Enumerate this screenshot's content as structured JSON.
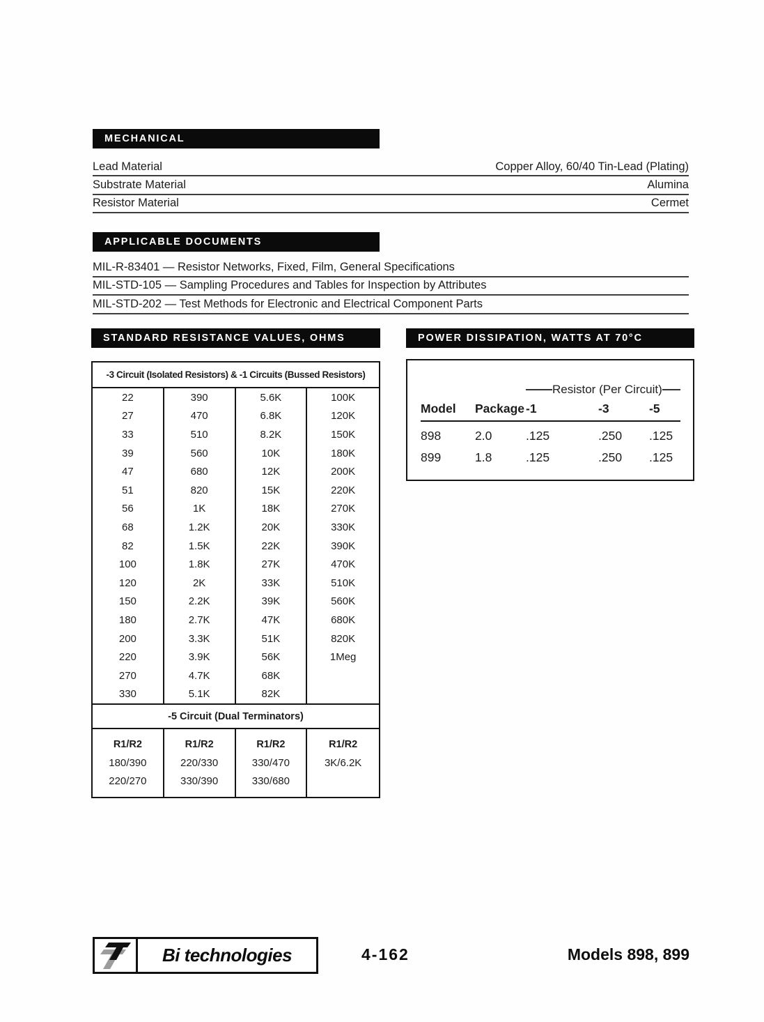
{
  "mechanical": {
    "title": "MECHANICAL",
    "rows": [
      {
        "label": "Lead Material",
        "value": "Copper Alloy, 60/40 Tin-Lead (Plating)"
      },
      {
        "label": "Substrate Material",
        "value": "Alumina"
      },
      {
        "label": "Resistor Material",
        "value": "Cermet"
      }
    ]
  },
  "applicable_documents": {
    "title": "APPLICABLE DOCUMENTS",
    "items": [
      "MIL-R-83401 — Resistor Networks, Fixed, Film, General Specifications",
      "MIL-STD-105 — Sampling Procedures and Tables for Inspection by Attributes",
      "MIL-STD-202 — Test Methods for Electronic and Electrical Component Parts"
    ]
  },
  "standard_resistance": {
    "title": "STANDARD RESISTANCE VALUES, OHMS",
    "header": "-3 Circuit (Isolated Resistors) & -1 Circuits (Bussed Resistors)",
    "rows": [
      [
        "22",
        "390",
        "5.6K",
        "100K"
      ],
      [
        "27",
        "470",
        "6.8K",
        "120K"
      ],
      [
        "33",
        "510",
        "8.2K",
        "150K"
      ],
      [
        "39",
        "560",
        "10K",
        "180K"
      ],
      [
        "47",
        "680",
        "12K",
        "200K"
      ],
      [
        "51",
        "820",
        "15K",
        "220K"
      ],
      [
        "56",
        "1K",
        "18K",
        "270K"
      ],
      [
        "68",
        "1.2K",
        "20K",
        "330K"
      ],
      [
        "82",
        "1.5K",
        "22K",
        "390K"
      ],
      [
        "100",
        "1.8K",
        "27K",
        "470K"
      ],
      [
        "120",
        "2K",
        "33K",
        "510K"
      ],
      [
        "150",
        "2.2K",
        "39K",
        "560K"
      ],
      [
        "180",
        "2.7K",
        "47K",
        "680K"
      ],
      [
        "200",
        "3.3K",
        "51K",
        "820K"
      ],
      [
        "220",
        "3.9K",
        "56K",
        "1Meg"
      ],
      [
        "270",
        "4.7K",
        "68K",
        ""
      ],
      [
        "330",
        "5.1K",
        "82K",
        ""
      ]
    ],
    "dual_header": "-5 Circuit (Dual Terminators)",
    "dual_col_header": "R1/R2",
    "dual_rows": [
      [
        "180/390",
        "220/330",
        "330/470",
        "3K/6.2K"
      ],
      [
        "220/270",
        "330/390",
        "330/680",
        ""
      ]
    ]
  },
  "power_dissipation": {
    "title": "POWER DISSIPATION, WATTS AT 70°C",
    "span_header": "Resistor (Per Circuit)",
    "columns": [
      "Model",
      "Package",
      "-1",
      "-3",
      "-5"
    ],
    "rows": [
      [
        "898",
        "2.0",
        ".125",
        ".250",
        ".125"
      ],
      [
        "899",
        "1.8",
        ".125",
        ".250",
        ".125"
      ]
    ]
  },
  "footer": {
    "brand": "Bi technologies",
    "page_number": "4-162",
    "models_label": "Models 898, 899"
  }
}
